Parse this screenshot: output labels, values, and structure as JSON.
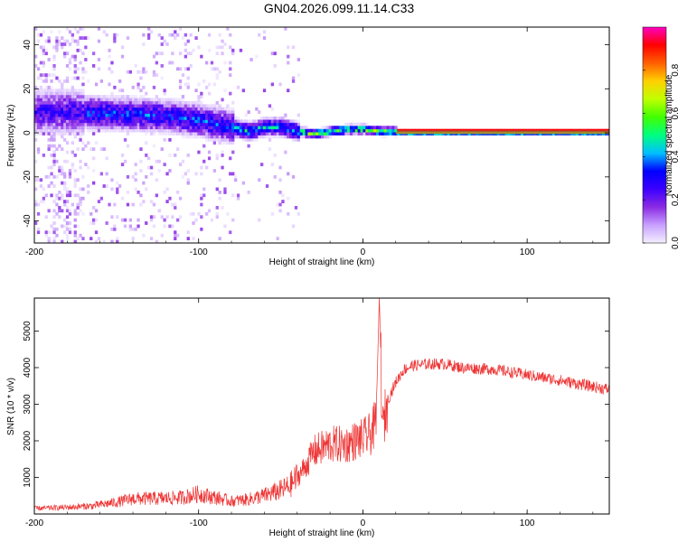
{
  "title": "GN04.2026.099.11.14.C33",
  "colors": {
    "signal": "#ee3333",
    "frame": "#000000",
    "colormap": [
      "#f4f0ff",
      "#c8a0ff",
      "#8a2be2",
      "#3b00ff",
      "#0000ff",
      "#00c0ff",
      "#00ff80",
      "#40ff00",
      "#c0ff00",
      "#ffd000",
      "#ff6000",
      "#ff0000",
      "#ff00c0"
    ]
  },
  "chart_data": [
    {
      "type": "heatmap",
      "title": "",
      "xlabel": "Height of straight line (km)",
      "ylabel": "Frequency (Hz)",
      "xlim": [
        -200,
        150
      ],
      "ylim": [
        -50,
        48
      ],
      "xticks": [
        -200,
        -100,
        0,
        100
      ],
      "yticks": [
        -40,
        -20,
        0,
        20,
        40
      ],
      "ytick_labels": [
        "-40",
        "-20",
        "0",
        "20",
        "40"
      ],
      "xtick_labels": [
        "-200",
        "-100",
        "0",
        "100"
      ],
      "grid": false,
      "ridge": {
        "description_points_x": [
          -180,
          -150,
          -120,
          -100,
          -80,
          -70,
          -60,
          -50,
          -40,
          -30,
          -20,
          -10,
          0,
          10,
          20,
          150
        ],
        "description_points_y": [
          9,
          8,
          7,
          5,
          2,
          0,
          2,
          2,
          0,
          -1,
          0,
          1,
          1,
          0,
          0,
          0
        ]
      },
      "colorbar": {
        "label": "Normalized spectral amplitude",
        "range": [
          0,
          1
        ],
        "ticks": [
          0.0,
          0.2,
          0.4,
          0.6,
          0.8
        ],
        "tick_labels": [
          "0.0",
          "0.2",
          "0.4",
          "0.6",
          "0.8"
        ]
      }
    },
    {
      "type": "line",
      "title": "",
      "xlabel": "Height of straight line (km)",
      "ylabel": "SNR (10 * v/v)",
      "xlim": [
        -200,
        150
      ],
      "ylim": [
        0,
        5900
      ],
      "xticks": [
        -200,
        -100,
        0,
        100
      ],
      "xtick_labels": [
        "-200",
        "-100",
        "0",
        "100"
      ],
      "yticks": [
        1000,
        2000,
        3000,
        4000,
        5000
      ],
      "ytick_labels": [
        "1000",
        "2000",
        "3000",
        "4000",
        "5000"
      ],
      "grid": false,
      "series": [
        {
          "name": "SNR",
          "x": [
            -200,
            -180,
            -165,
            -150,
            -140,
            -130,
            -120,
            -110,
            -100,
            -90,
            -80,
            -70,
            -60,
            -50,
            -45,
            -40,
            -35,
            -30,
            -25,
            -20,
            -15,
            -10,
            -5,
            0,
            5,
            8,
            10,
            12,
            15,
            20,
            25,
            30,
            40,
            50,
            60,
            80,
            100,
            120,
            150
          ],
          "values": [
            150,
            180,
            220,
            320,
            420,
            420,
            430,
            450,
            550,
            450,
            350,
            400,
            500,
            650,
            750,
            1000,
            1300,
            1700,
            1800,
            1900,
            1900,
            1900,
            2000,
            2050,
            2200,
            2500,
            5900,
            2300,
            3100,
            3600,
            3950,
            4050,
            4100,
            4100,
            4000,
            3950,
            3800,
            3650,
            3400
          ]
        }
      ]
    }
  ]
}
